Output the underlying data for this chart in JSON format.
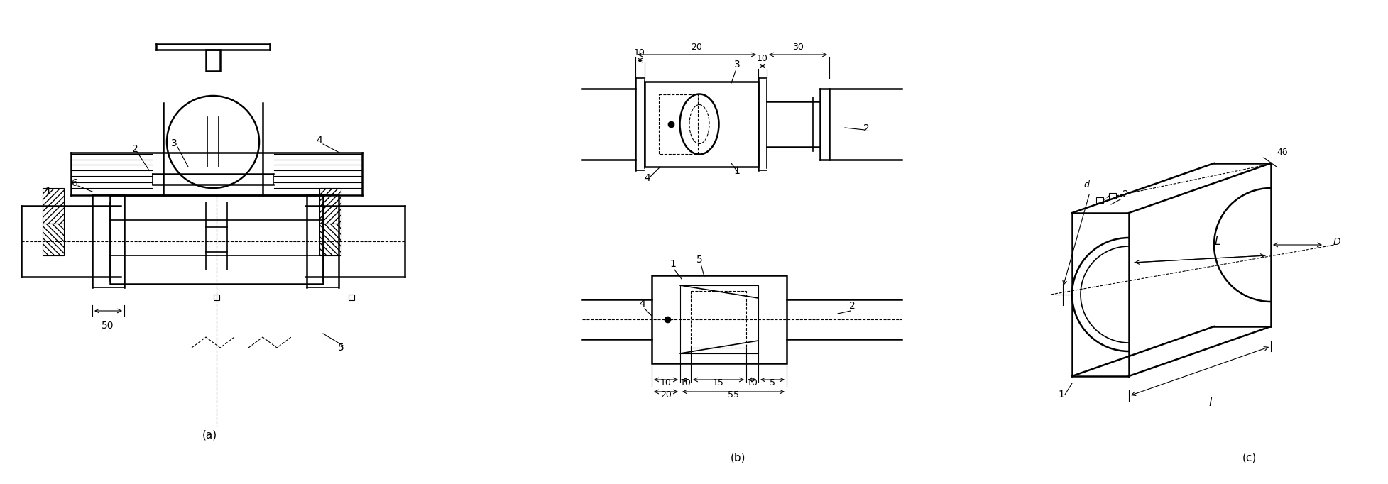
{
  "title": "",
  "background": "#ffffff",
  "line_color": "#000000",
  "label_a": "(a)",
  "label_b": "(b)",
  "label_c": "(c)",
  "fig_width": 19.56,
  "fig_height": 6.82
}
